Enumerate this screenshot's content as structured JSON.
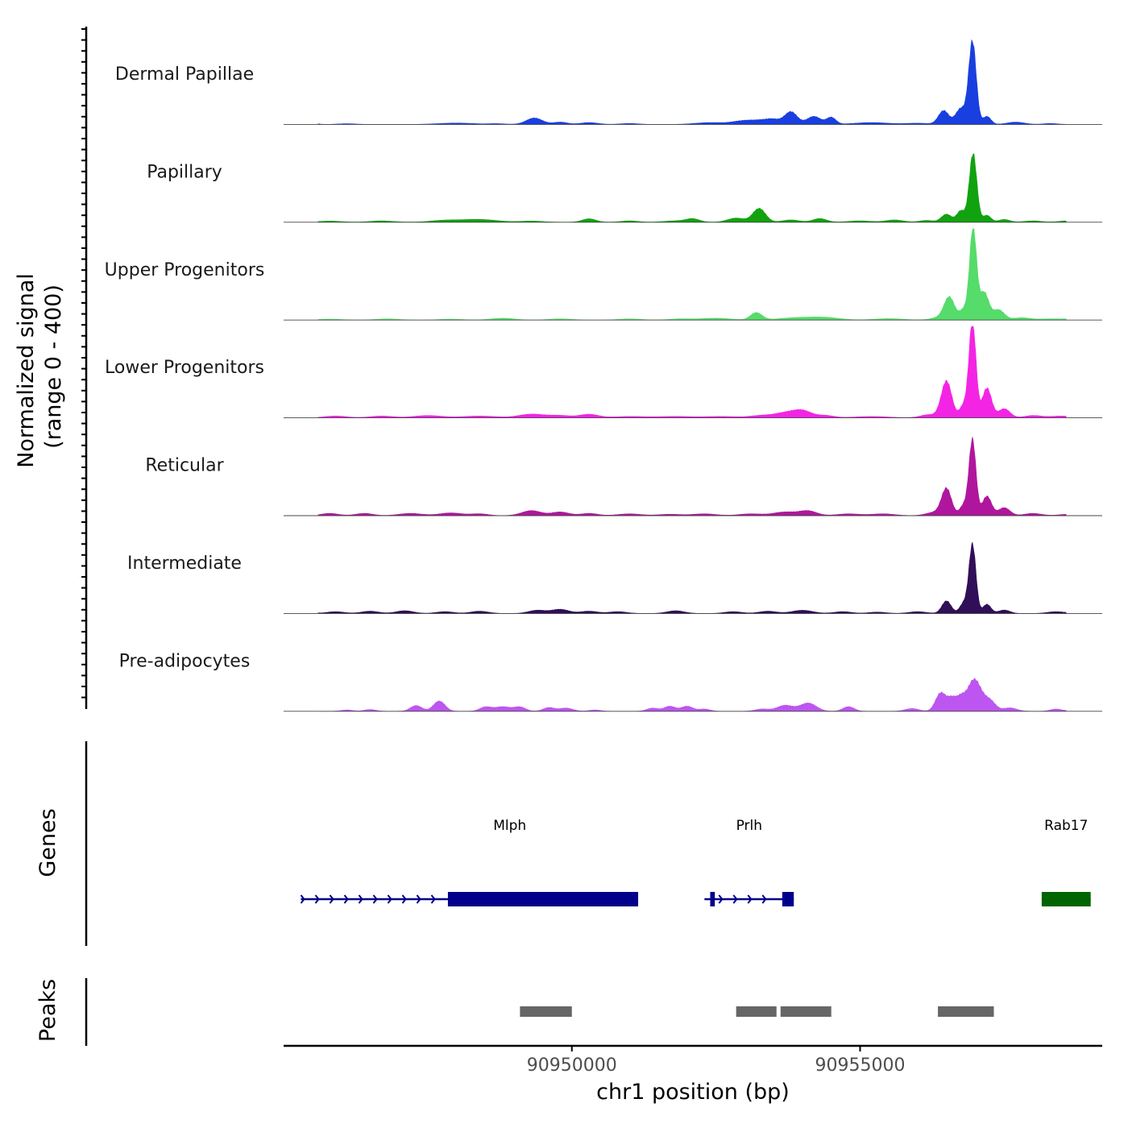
{
  "chart_data": {
    "type": "area",
    "chromosome": "chr1",
    "region": [
      90945000,
      90959200
    ],
    "xlabel": "chr1 position (bp)",
    "x_ticks": [
      90950000,
      90955000
    ],
    "x_tick_labels": [
      "90950000",
      "90955000"
    ],
    "signal_axis_label": [
      "Normalized signal",
      "(range 0 - 400)"
    ],
    "signal_range": [
      0,
      400
    ],
    "tracks": [
      {
        "name": "Dermal Papillae",
        "color": "#1a3fe0",
        "peaks": [
          [
            90945500,
            6,
            80
          ],
          [
            90946100,
            3,
            150
          ],
          [
            90948000,
            6,
            300
          ],
          [
            90948700,
            3,
            150
          ],
          [
            90949350,
            28,
            140
          ],
          [
            90949800,
            10,
            120
          ],
          [
            90950300,
            8,
            150
          ],
          [
            90951000,
            4,
            150
          ],
          [
            90952400,
            8,
            250
          ],
          [
            90953000,
            16,
            200
          ],
          [
            90953300,
            12,
            150
          ],
          [
            90953500,
            18,
            120
          ],
          [
            90953800,
            55,
            110
          ],
          [
            90954200,
            35,
            120
          ],
          [
            90954500,
            30,
            80
          ],
          [
            90955200,
            8,
            300
          ],
          [
            90956000,
            5,
            200
          ],
          [
            90956450,
            60,
            90
          ],
          [
            90956750,
            70,
            90
          ],
          [
            90956950,
            360,
            65
          ],
          [
            90957200,
            35,
            70
          ],
          [
            90957700,
            10,
            150
          ],
          [
            90958300,
            4,
            120
          ],
          [
            90958800,
            3,
            100
          ]
        ]
      },
      {
        "name": "Papillary",
        "color": "#11a30f",
        "peaks": [
          [
            90945800,
            5,
            200
          ],
          [
            90946700,
            6,
            200
          ],
          [
            90947800,
            8,
            250
          ],
          [
            90948400,
            12,
            300
          ],
          [
            90949300,
            5,
            200
          ],
          [
            90950300,
            15,
            120
          ],
          [
            90951000,
            6,
            150
          ],
          [
            90951800,
            6,
            200
          ],
          [
            90952100,
            14,
            120
          ],
          [
            90952850,
            18,
            150
          ],
          [
            90953250,
            60,
            110
          ],
          [
            90953800,
            10,
            150
          ],
          [
            90954300,
            16,
            120
          ],
          [
            90955000,
            6,
            200
          ],
          [
            90955600,
            10,
            150
          ],
          [
            90956150,
            8,
            120
          ],
          [
            90956500,
            35,
            90
          ],
          [
            90956750,
            50,
            70
          ],
          [
            90956960,
            300,
            65
          ],
          [
            90957200,
            30,
            70
          ],
          [
            90957500,
            12,
            100
          ],
          [
            90958000,
            6,
            150
          ],
          [
            90958600,
            6,
            150
          ]
        ]
      },
      {
        "name": "Upper Progenitors",
        "color": "#55dc6a",
        "peaks": [
          [
            90945800,
            4,
            200
          ],
          [
            90946800,
            5,
            200
          ],
          [
            90947900,
            4,
            200
          ],
          [
            90948800,
            8,
            200
          ],
          [
            90949800,
            5,
            200
          ],
          [
            90951000,
            5,
            200
          ],
          [
            90951900,
            5,
            200
          ],
          [
            90952500,
            8,
            250
          ],
          [
            90953200,
            32,
            100
          ],
          [
            90953900,
            10,
            300
          ],
          [
            90954400,
            10,
            250
          ],
          [
            90955500,
            6,
            250
          ],
          [
            90956400,
            12,
            150
          ],
          [
            90956550,
            95,
            90
          ],
          [
            90956800,
            45,
            70
          ],
          [
            90956960,
            400,
            60
          ],
          [
            90957150,
            120,
            80
          ],
          [
            90957400,
            45,
            100
          ],
          [
            90957800,
            10,
            150
          ],
          [
            90958300,
            5,
            200
          ],
          [
            90958700,
            5,
            150
          ]
        ]
      },
      {
        "name": "Lower Progenitors",
        "color": "#f424e4",
        "peaks": [
          [
            90945900,
            8,
            200
          ],
          [
            90946700,
            8,
            200
          ],
          [
            90947500,
            10,
            250
          ],
          [
            90948400,
            8,
            300
          ],
          [
            90949300,
            16,
            220
          ],
          [
            90949800,
            10,
            200
          ],
          [
            90950300,
            15,
            160
          ],
          [
            90951000,
            6,
            300
          ],
          [
            90951800,
            6,
            300
          ],
          [
            90952600,
            6,
            300
          ],
          [
            90953300,
            10,
            200
          ],
          [
            90953700,
            20,
            180
          ],
          [
            90954000,
            30,
            160
          ],
          [
            90954400,
            10,
            150
          ],
          [
            90955200,
            6,
            300
          ],
          [
            90956200,
            14,
            150
          ],
          [
            90956500,
            160,
            90
          ],
          [
            90956800,
            55,
            70
          ],
          [
            90956950,
            420,
            60
          ],
          [
            90957200,
            130,
            80
          ],
          [
            90957500,
            40,
            100
          ],
          [
            90958000,
            10,
            150
          ],
          [
            90958500,
            8,
            200
          ]
        ]
      },
      {
        "name": "Reticular",
        "color": "#b0169d",
        "peaks": [
          [
            90945800,
            10,
            150
          ],
          [
            90946400,
            10,
            150
          ],
          [
            90947200,
            10,
            200
          ],
          [
            90947900,
            12,
            200
          ],
          [
            90948400,
            8,
            150
          ],
          [
            90949300,
            22,
            170
          ],
          [
            90949800,
            16,
            150
          ],
          [
            90950300,
            10,
            150
          ],
          [
            90951000,
            8,
            200
          ],
          [
            90951700,
            6,
            200
          ],
          [
            90952300,
            8,
            200
          ],
          [
            90953100,
            8,
            200
          ],
          [
            90953700,
            16,
            200
          ],
          [
            90954100,
            20,
            150
          ],
          [
            90954800,
            8,
            200
          ],
          [
            90955400,
            8,
            200
          ],
          [
            90956300,
            15,
            150
          ],
          [
            90956500,
            115,
            85
          ],
          [
            90956800,
            45,
            70
          ],
          [
            90956950,
            330,
            60
          ],
          [
            90957200,
            85,
            80
          ],
          [
            90957500,
            35,
            100
          ],
          [
            90958000,
            10,
            150
          ],
          [
            90958600,
            6,
            150
          ]
        ]
      },
      {
        "name": "Intermediate",
        "color": "#310e58",
        "peaks": [
          [
            90945400,
            20,
            90
          ],
          [
            90945900,
            8,
            150
          ],
          [
            90946500,
            10,
            150
          ],
          [
            90947100,
            12,
            150
          ],
          [
            90947800,
            8,
            150
          ],
          [
            90948400,
            10,
            150
          ],
          [
            90949400,
            14,
            150
          ],
          [
            90949800,
            18,
            150
          ],
          [
            90950300,
            10,
            150
          ],
          [
            90950800,
            8,
            150
          ],
          [
            90951800,
            12,
            150
          ],
          [
            90952800,
            8,
            150
          ],
          [
            90953400,
            10,
            150
          ],
          [
            90954000,
            14,
            180
          ],
          [
            90954700,
            8,
            150
          ],
          [
            90955300,
            6,
            150
          ],
          [
            90956000,
            8,
            150
          ],
          [
            90956500,
            55,
            80
          ],
          [
            90956800,
            45,
            70
          ],
          [
            90956950,
            300,
            60
          ],
          [
            90957200,
            40,
            70
          ],
          [
            90957500,
            15,
            100
          ],
          [
            90958400,
            8,
            150
          ],
          [
            90958900,
            8,
            150
          ]
        ]
      },
      {
        "name": "Pre-adipocytes",
        "color": "#bd55f0",
        "peaks": [
          [
            90946100,
            6,
            100
          ],
          [
            90946500,
            8,
            100
          ],
          [
            90947300,
            25,
            100
          ],
          [
            90947700,
            45,
            100
          ],
          [
            90948500,
            18,
            100
          ],
          [
            90948800,
            20,
            140
          ],
          [
            90949100,
            18,
            100
          ],
          [
            90949600,
            16,
            100
          ],
          [
            90949900,
            14,
            120
          ],
          [
            90950400,
            6,
            100
          ],
          [
            90951400,
            14,
            100
          ],
          [
            90951700,
            22,
            100
          ],
          [
            90952000,
            22,
            100
          ],
          [
            90952300,
            10,
            100
          ],
          [
            90953300,
            10,
            120
          ],
          [
            90953700,
            26,
            140
          ],
          [
            90954100,
            36,
            140
          ],
          [
            90954800,
            20,
            100
          ],
          [
            90955900,
            12,
            120
          ],
          [
            90956400,
            80,
            90
          ],
          [
            90956600,
            55,
            80
          ],
          [
            90956750,
            45,
            70
          ],
          [
            90956980,
            140,
            120
          ],
          [
            90957250,
            45,
            100
          ],
          [
            90957600,
            15,
            120
          ],
          [
            90958400,
            10,
            100
          ],
          [
            90958750,
            10,
            100
          ]
        ]
      }
    ],
    "genes_axis_label": "Genes",
    "genes": [
      {
        "name": "Mlph",
        "strand": "+",
        "color": "#00008b",
        "start": 90945300,
        "end": 90951150,
        "thick_start": 90947850,
        "thick_end": 90951150
      },
      {
        "name": "Prlh",
        "strand": "+",
        "color": "#00008b",
        "start": 90952300,
        "end": 90953850,
        "thick_start": 90952400,
        "thick_end": 90952480,
        "extra_thick": [
          90953650,
          90953850
        ]
      },
      {
        "name": "Rab17",
        "strand": "-",
        "color": "#006400",
        "start": 90958150,
        "end": 90959000,
        "thick_start": 90958150,
        "thick_end": 90959000
      }
    ],
    "peaks_axis_label": "Peaks",
    "peak_regions": [
      [
        90949100,
        90950000
      ],
      [
        90952850,
        90953550
      ],
      [
        90953620,
        90954500
      ],
      [
        90956350,
        90957320
      ]
    ]
  }
}
